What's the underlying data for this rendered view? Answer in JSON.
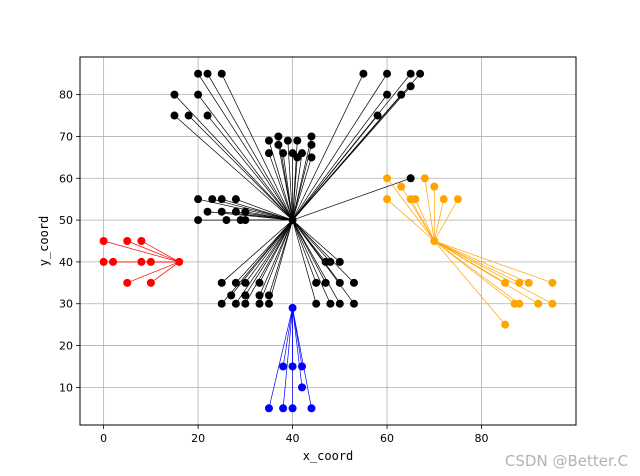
{
  "watermark": "CSDN @Better.C",
  "chart_data": {
    "type": "scatter",
    "title": "",
    "xlabel": "x_coord",
    "ylabel": "y_coord",
    "xlim": [
      -5,
      100
    ],
    "ylim": [
      1,
      89
    ],
    "xticks": [
      0,
      20,
      40,
      60,
      80
    ],
    "yticks": [
      10,
      20,
      30,
      40,
      50,
      60,
      70,
      80
    ],
    "grid": true,
    "series": [
      {
        "name": "black",
        "color": "#000000",
        "center": [
          40,
          50
        ],
        "points": [
          [
            20,
            85
          ],
          [
            22,
            85
          ],
          [
            25,
            85
          ],
          [
            15,
            80
          ],
          [
            20,
            80
          ],
          [
            15,
            75
          ],
          [
            18,
            75
          ],
          [
            22,
            75
          ],
          [
            55,
            85
          ],
          [
            60,
            85
          ],
          [
            65,
            85
          ],
          [
            67,
            85
          ],
          [
            65,
            82
          ],
          [
            60,
            80
          ],
          [
            63,
            80
          ],
          [
            58,
            75
          ],
          [
            35,
            69
          ],
          [
            37,
            70
          ],
          [
            37,
            68
          ],
          [
            39,
            69
          ],
          [
            41,
            69
          ],
          [
            38,
            66
          ],
          [
            40,
            66
          ],
          [
            42,
            66
          ],
          [
            44,
            68
          ],
          [
            44,
            70
          ],
          [
            35,
            66
          ],
          [
            41,
            65
          ],
          [
            44,
            65
          ],
          [
            65,
            60
          ],
          [
            20,
            55
          ],
          [
            23,
            55
          ],
          [
            25,
            55
          ],
          [
            28,
            55
          ],
          [
            22,
            52
          ],
          [
            25,
            52
          ],
          [
            28,
            52
          ],
          [
            30,
            52
          ],
          [
            20,
            50
          ],
          [
            26,
            50
          ],
          [
            29,
            50
          ],
          [
            30,
            50
          ],
          [
            25,
            35
          ],
          [
            28,
            35
          ],
          [
            30,
            35
          ],
          [
            33,
            35
          ],
          [
            27,
            32
          ],
          [
            30,
            32
          ],
          [
            33,
            32
          ],
          [
            35,
            32
          ],
          [
            25,
            30
          ],
          [
            28,
            30
          ],
          [
            30,
            30
          ],
          [
            33,
            30
          ],
          [
            35,
            30
          ],
          [
            47,
            40
          ],
          [
            48,
            40
          ],
          [
            50,
            40
          ],
          [
            45,
            35
          ],
          [
            47,
            35
          ],
          [
            50,
            35
          ],
          [
            53,
            35
          ],
          [
            45,
            30
          ],
          [
            48,
            30
          ],
          [
            50,
            30
          ],
          [
            53,
            30
          ]
        ]
      },
      {
        "name": "red",
        "color": "#ff0000",
        "center": [
          16,
          40
        ],
        "points": [
          [
            0,
            45
          ],
          [
            5,
            45
          ],
          [
            8,
            45
          ],
          [
            0,
            40
          ],
          [
            2,
            40
          ],
          [
            8,
            40
          ],
          [
            10,
            40
          ],
          [
            5,
            35
          ],
          [
            10,
            35
          ]
        ]
      },
      {
        "name": "orange",
        "color": "#ffa500",
        "center": [
          70,
          45
        ],
        "points": [
          [
            60,
            60
          ],
          [
            63,
            58
          ],
          [
            65,
            55
          ],
          [
            66,
            55
          ],
          [
            68,
            60
          ],
          [
            70,
            58
          ],
          [
            72,
            55
          ],
          [
            75,
            55
          ],
          [
            60,
            55
          ],
          [
            85,
            35
          ],
          [
            88,
            35
          ],
          [
            90,
            35
          ],
          [
            95,
            35
          ],
          [
            87,
            30
          ],
          [
            88,
            30
          ],
          [
            92,
            30
          ],
          [
            95,
            30
          ],
          [
            85,
            25
          ]
        ]
      },
      {
        "name": "blue",
        "color": "#0000ff",
        "center": [
          40,
          29
        ],
        "points": [
          [
            38,
            15
          ],
          [
            40,
            15
          ],
          [
            42,
            15
          ],
          [
            42,
            10
          ],
          [
            35,
            5
          ],
          [
            38,
            5
          ],
          [
            40,
            5
          ],
          [
            44,
            5
          ]
        ]
      }
    ]
  }
}
